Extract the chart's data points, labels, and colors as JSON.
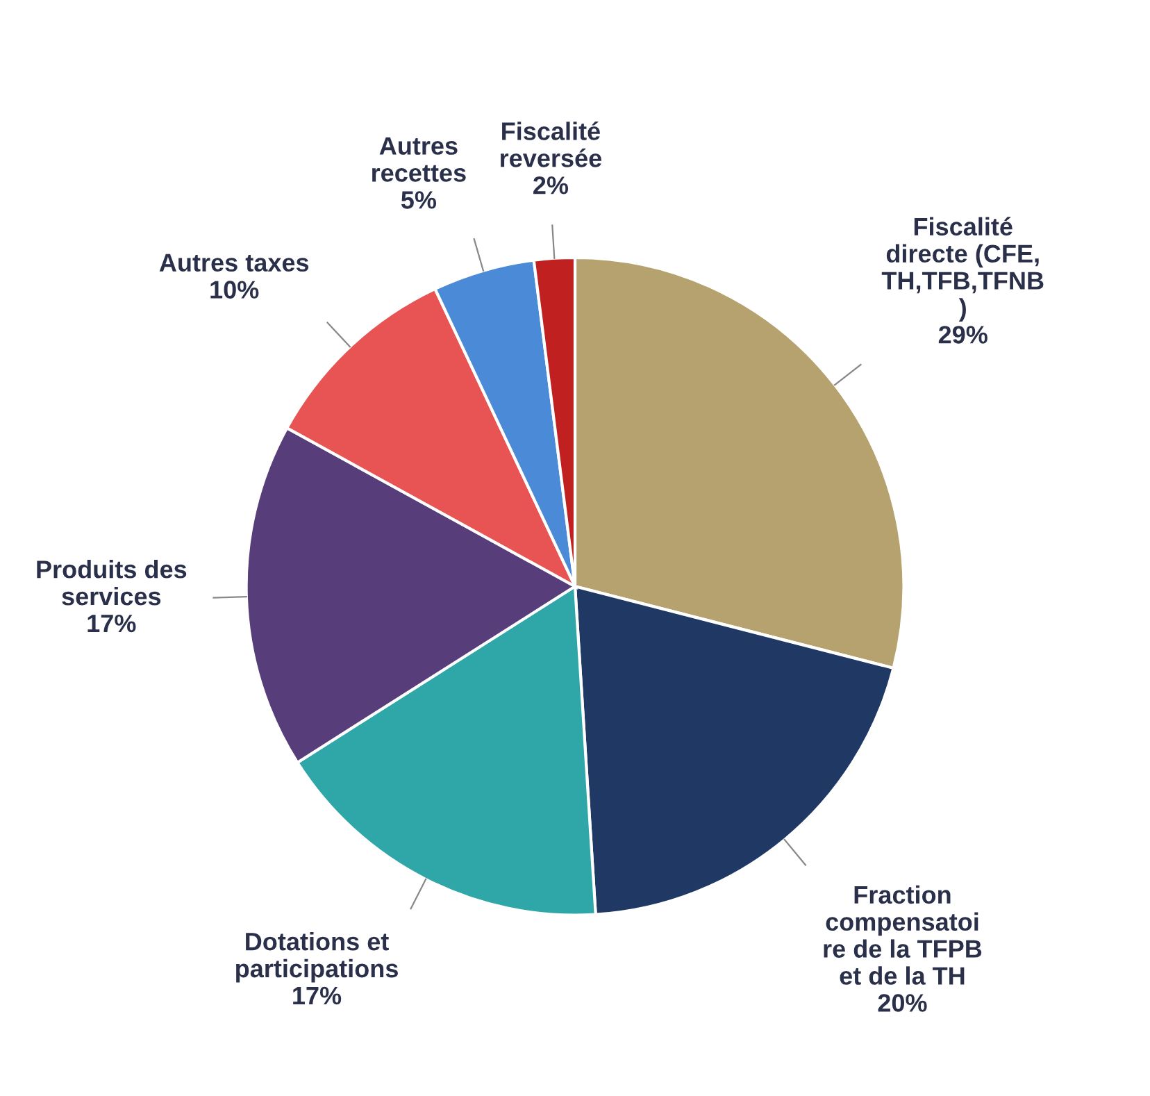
{
  "chart_data": {
    "type": "pie",
    "categories": [
      "Fiscalité\ndirecte (CFE,\nTH,TFB,TFNB\n)",
      "Fraction\ncompensatoi\nre de la TFPB\net de la TH",
      "Dotations et\nparticipations",
      "Produits des\nservices",
      "Autres taxes",
      "Autres\nrecettes",
      "Fiscalité\nreversée"
    ],
    "values": [
      29,
      20,
      17,
      17,
      10,
      5,
      2
    ],
    "colors": [
      "#b5a26e",
      "#1f3864",
      "#2fa6a8",
      "#573d7a",
      "#e85454",
      "#4a8ad6",
      "#c0201f"
    ],
    "value_labels": [
      "29%",
      "20%",
      "17%",
      "17%",
      "10%",
      "5%",
      "2%"
    ],
    "legend": false
  }
}
